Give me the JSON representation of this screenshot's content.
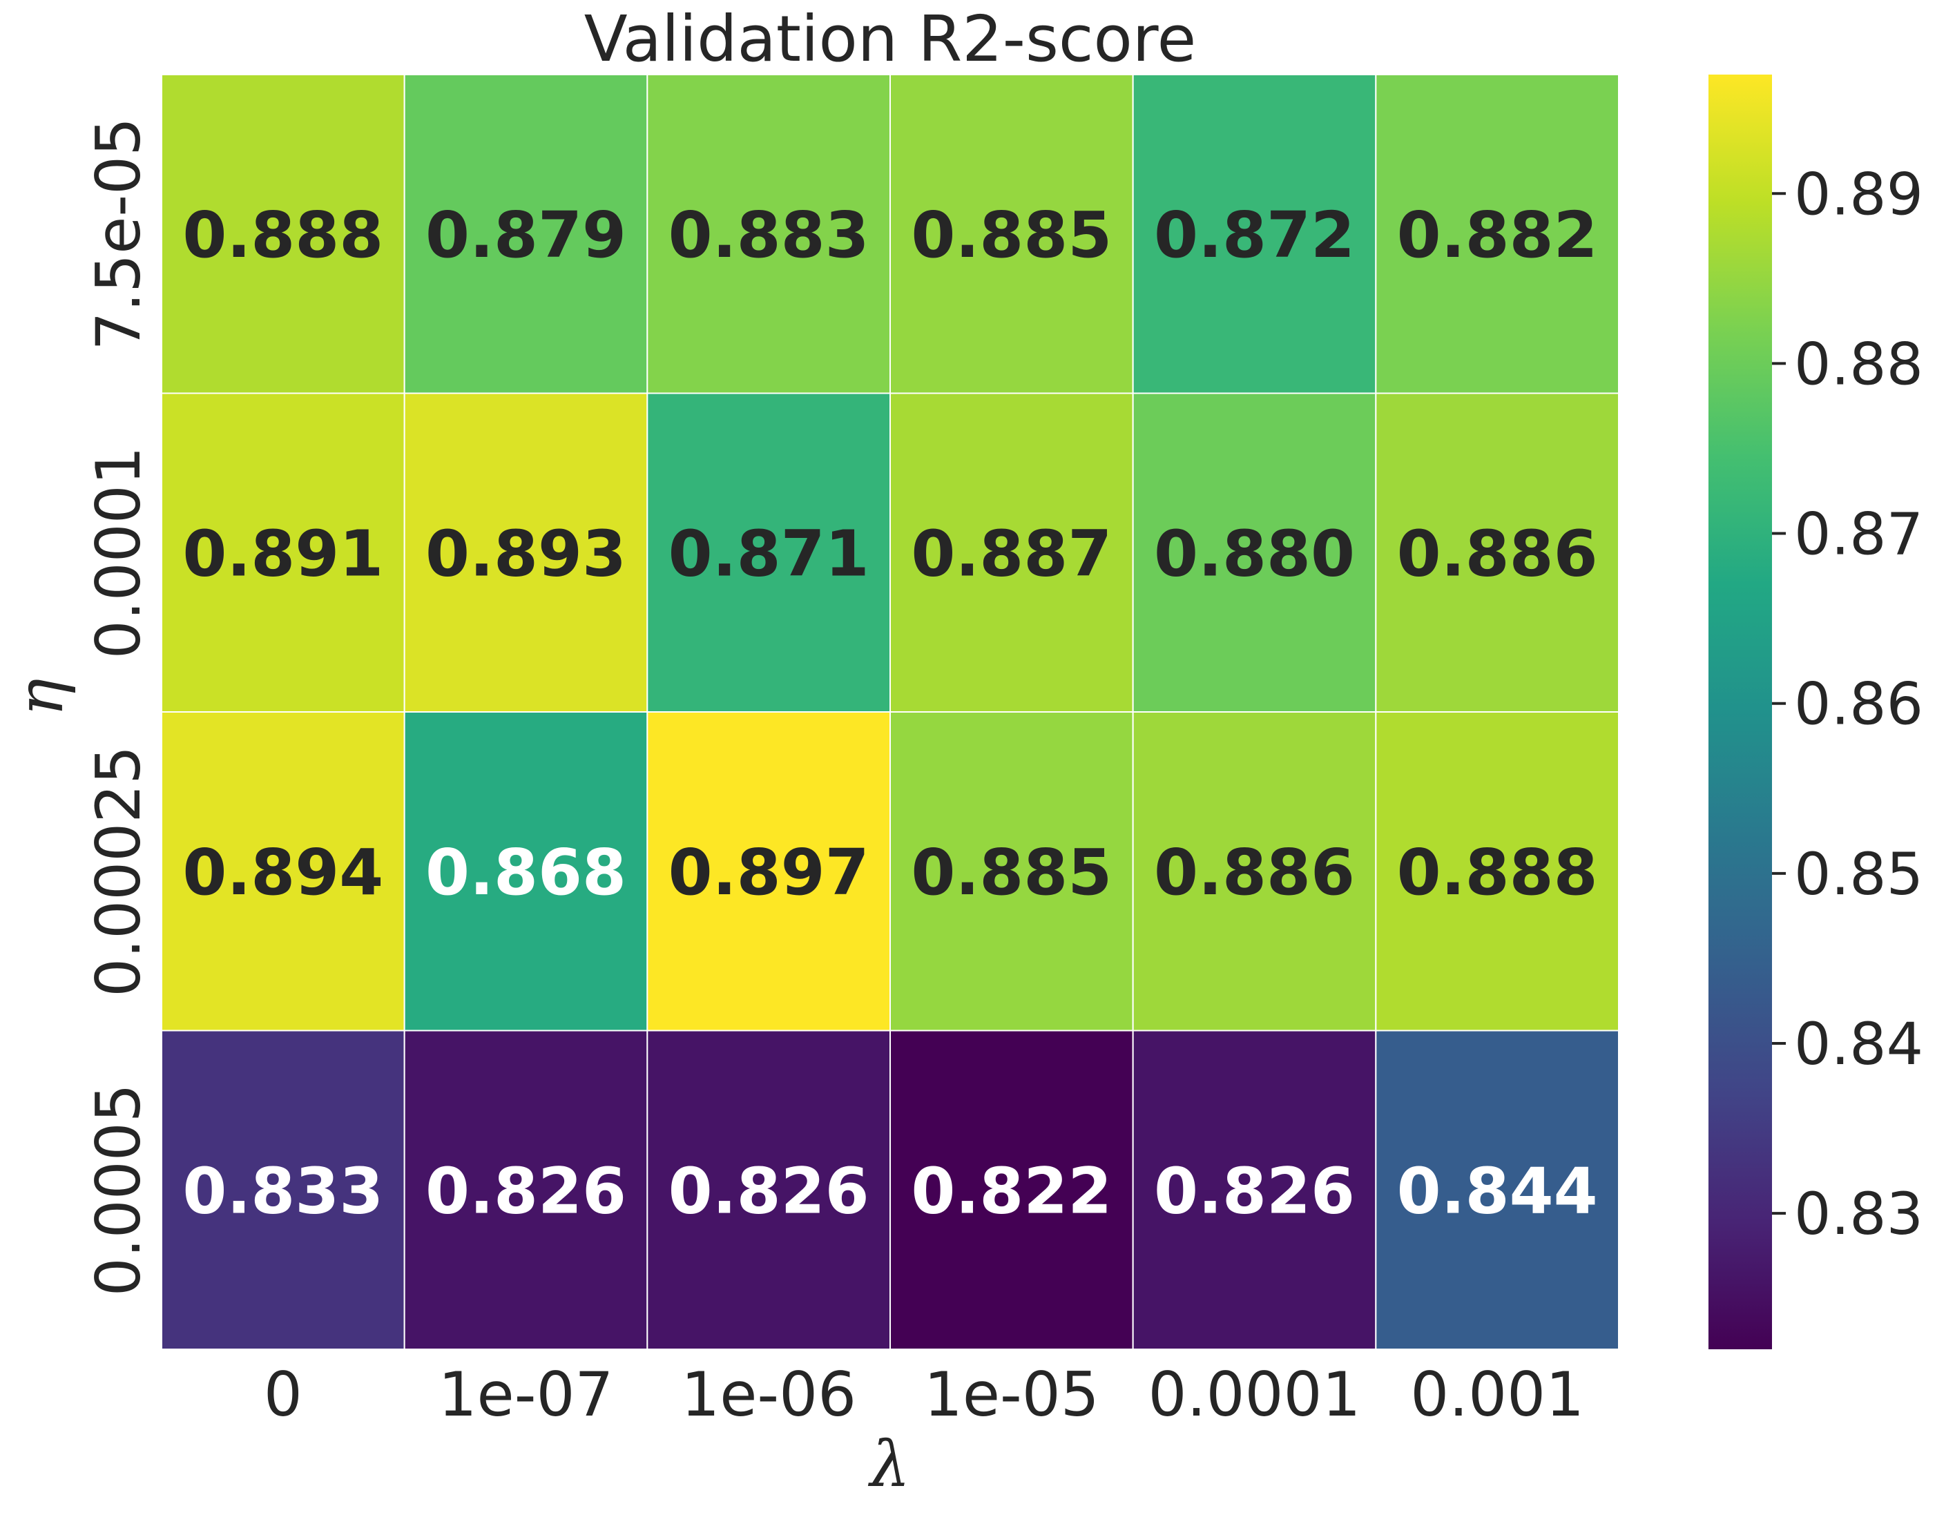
{
  "chart_data": {
    "type": "heatmap",
    "title": "Validation R2-score",
    "xlabel": "λ",
    "ylabel": "η",
    "x_categories": [
      "0",
      "1e-07",
      "1e-06",
      "1e-05",
      "0.0001",
      "0.001"
    ],
    "y_categories": [
      "7.5e-05",
      "0.0001",
      "0.00025",
      "0.0005"
    ],
    "values": [
      [
        0.888,
        0.879,
        0.883,
        0.885,
        0.872,
        0.882
      ],
      [
        0.891,
        0.893,
        0.871,
        0.887,
        0.88,
        0.886
      ],
      [
        0.894,
        0.868,
        0.897,
        0.885,
        0.886,
        0.888
      ],
      [
        0.833,
        0.826,
        0.826,
        0.822,
        0.826,
        0.844
      ]
    ],
    "value_format": "0.000",
    "colormap": "viridis",
    "color_range": [
      0.822,
      0.897
    ],
    "colorbar_ticks": [
      "0.83",
      "0.84",
      "0.85",
      "0.86",
      "0.87",
      "0.88",
      "0.89"
    ],
    "grid": false,
    "legend": "colorbar-right"
  }
}
